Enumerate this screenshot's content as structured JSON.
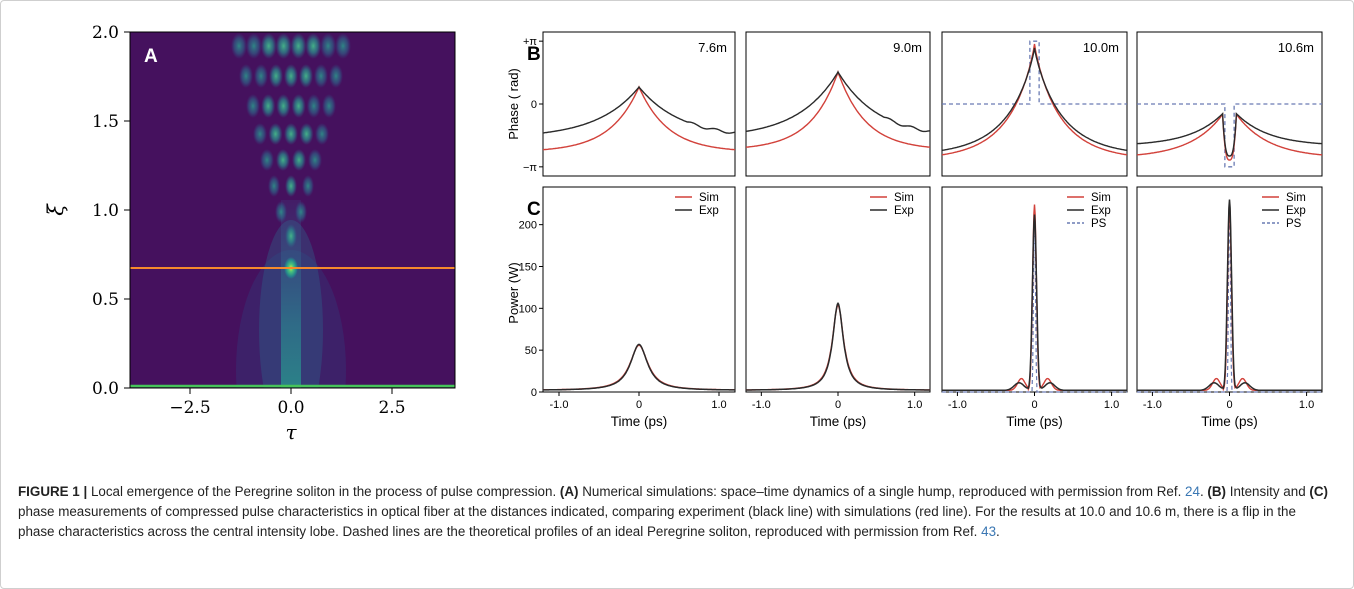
{
  "panel_a": {
    "label": "A",
    "xlabel": "τ",
    "ylabel": "ξ",
    "x_ticks": [
      "−2.5",
      "0.0",
      "2.5"
    ],
    "y_ticks": [
      "0.0",
      "0.5",
      "1.0",
      "1.5",
      "2.0"
    ],
    "colors": {
      "background": "#45115e",
      "line_orange": "#f58a2c",
      "line_green": "#46c45a"
    }
  },
  "panel_b": {
    "label": "B",
    "ylabel": "Phase ( rad)",
    "y_ticks": [
      "+π",
      "0",
      "−π"
    ],
    "distances": [
      "7.6m",
      "9.0m",
      "10.0m",
      "10.6m"
    ]
  },
  "panel_c": {
    "label": "C",
    "ylabel": "Power (W)",
    "xlabel": "Time (ps)",
    "x_ticks": [
      "-1.0",
      "0",
      "1.0"
    ],
    "y_ticks": [
      "0",
      "50",
      "100",
      "150",
      "200"
    ],
    "legend_two": [
      "Sim",
      "Exp"
    ],
    "legend_three": [
      "Sim",
      "Exp",
      "PS"
    ],
    "colors": {
      "sim": "#d2413a",
      "exp": "#2a2a2a",
      "ps": "#6a7bb3"
    }
  },
  "chart_data": [
    {
      "type": "heatmap",
      "panel": "A",
      "x_range": [
        -4,
        4
      ],
      "y_range": [
        0,
        2
      ],
      "xlabel": "τ",
      "ylabel": "ξ",
      "horizontal_lines": [
        {
          "y": 0.67,
          "color": "#f58a2c"
        },
        {
          "y": 0.0,
          "color": "#46c45a"
        }
      ]
    },
    {
      "type": "line",
      "panel": "B",
      "ylabel": "Phase ( rad)",
      "x_range": [
        -1.2,
        1.2
      ],
      "y_range": [
        -3.6,
        3.6
      ],
      "subplots": [
        {
          "title": "7.6m",
          "series": [
            {
              "name": "Sim",
              "peak": 0.85,
              "tail": -2.4
            },
            {
              "name": "Exp",
              "peak": 0.85,
              "tail": -1.7
            }
          ]
        },
        {
          "title": "9.0m",
          "series": [
            {
              "name": "Sim",
              "peak": 1.6,
              "tail": -2.3
            },
            {
              "name": "Exp",
              "peak": 1.6,
              "tail": -1.7
            }
          ]
        },
        {
          "title": "10.0m",
          "series": [
            {
              "name": "Sim",
              "peak": 3.0,
              "tail": -2.8
            },
            {
              "name": "Exp",
              "peak": 2.8,
              "tail": -2.6
            }
          ],
          "ps": {
            "inner": 3.14,
            "outer": 0.0,
            "half_width": 0.06
          }
        },
        {
          "title": "10.6m",
          "series": [
            {
              "name": "Sim",
              "dip": -2.8,
              "tail": -2.7
            },
            {
              "name": "Exp",
              "dip": -2.6,
              "tail": -2.1
            }
          ],
          "ps": {
            "inner": -3.14,
            "outer": 0.0,
            "half_width": 0.06
          }
        }
      ]
    },
    {
      "type": "line",
      "panel": "C",
      "xlabel": "Time (ps)",
      "ylabel": "Power (W)",
      "x_range": [
        -1.2,
        1.2
      ],
      "y_range": [
        0,
        245
      ],
      "subplots": [
        {
          "title": "7.6m",
          "series": [
            {
              "name": "Sim",
              "peak": 56
            },
            {
              "name": "Exp",
              "peak": 57
            }
          ]
        },
        {
          "title": "9.0m",
          "series": [
            {
              "name": "Sim",
              "peak": 104
            },
            {
              "name": "Exp",
              "peak": 106
            }
          ]
        },
        {
          "title": "10.0m",
          "series": [
            {
              "name": "Sim",
              "peak": 222
            },
            {
              "name": "Exp",
              "peak": 210
            }
          ],
          "ps": {
            "peak": 215,
            "background": 22
          }
        },
        {
          "title": "10.6m",
          "series": [
            {
              "name": "Sim",
              "peak": 224
            },
            {
              "name": "Exp",
              "peak": 228
            }
          ],
          "ps": {
            "peak": 226,
            "background": 22
          }
        }
      ]
    }
  ],
  "caption": {
    "label": "FIGURE 1 |",
    "t1": " Local emergence of the Peregrine soliton in the process of pulse compression. ",
    "a": "(A)",
    "t2": " Numerical simulations: space–time dynamics of a single hump, reproduced with permission from Ref. ",
    "ref1": "24",
    "t3": ". ",
    "b": "(B)",
    "t4": " Intensity and ",
    "c": "(C)",
    "t5": " phase measurements of compressed pulse characteristics in optical fiber at the distances indicated, comparing experiment (black line) with simulations (red line). For the results at 10.0 and 10.6 m, there is a flip in the phase characteristics across the central intensity lobe. Dashed lines are the theoretical profiles of an ideal Peregrine soliton, reproduced with permission from Ref. ",
    "ref2": "43",
    "t6": "."
  }
}
